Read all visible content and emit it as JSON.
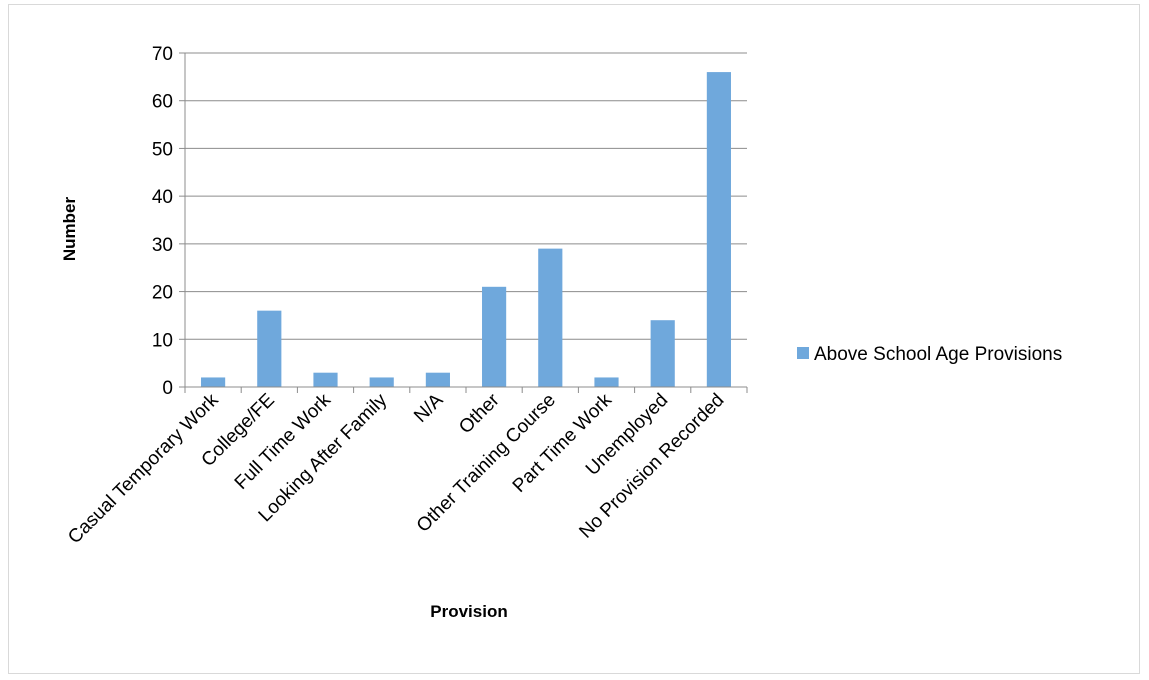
{
  "chart_data": {
    "type": "bar",
    "title": "",
    "xlabel": "Provision",
    "ylabel": "Number",
    "categories": [
      "Casual Temporary Work",
      "College/FE",
      "Full Time Work",
      "Looking After Family",
      "N/A",
      "Other",
      "Other Training Course",
      "Part Time Work",
      "Unemployed",
      "No Provision Recorded"
    ],
    "series": [
      {
        "name": "Above School Age Provisions",
        "values": [
          2,
          16,
          3,
          2,
          3,
          21,
          29,
          2,
          14,
          66
        ],
        "color": "#6fa8dc"
      }
    ],
    "ylim": [
      0,
      70
    ],
    "yticks": [
      0,
      10,
      20,
      30,
      40,
      50,
      60,
      70
    ],
    "grid": true,
    "legend_position": "right"
  }
}
